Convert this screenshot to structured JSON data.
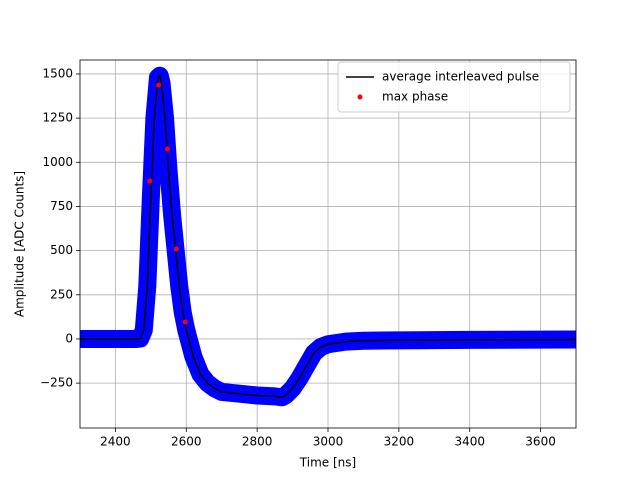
{
  "chart_data": {
    "type": "line",
    "xlabel": "Time [ns]",
    "ylabel": "Amplitude [ADC Counts]",
    "xlim": [
      2300,
      3700
    ],
    "xticks": [
      2400,
      2600,
      2800,
      3000,
      3200,
      3400,
      3600
    ],
    "ylim": [
      -504,
      1579
    ],
    "yticks": [
      {
        "value": -250,
        "label": "−250"
      },
      0,
      250,
      500,
      750,
      1000,
      1250,
      1500
    ],
    "grid": true,
    "legend": "upper right",
    "series": [
      {
        "kind": "band",
        "color": "#0000ff",
        "x": [
          2300,
          2460,
          2470,
          2480,
          2490,
          2500,
          2510,
          2520,
          2525,
          2530,
          2540,
          2550,
          2560,
          2570,
          2580,
          2590,
          2600,
          2620,
          2640,
          2660,
          2680,
          2700,
          2750,
          2800,
          2850,
          2870,
          2880,
          2900,
          2920,
          2940,
          2960,
          2980,
          3000,
          3050,
          3100,
          3200,
          3400,
          3700
        ],
        "values": [
          0,
          0,
          2,
          50,
          300,
          800,
          1250,
          1480,
          1490,
          1450,
          1250,
          950,
          700,
          500,
          300,
          150,
          50,
          -100,
          -200,
          -250,
          -280,
          -300,
          -310,
          -320,
          -325,
          -330,
          -320,
          -280,
          -220,
          -150,
          -80,
          -45,
          -30,
          -15,
          -10,
          -8,
          -5,
          -3
        ]
      },
      {
        "name": "average interleaved pulse",
        "kind": "line",
        "color": "#000000",
        "x": [
          2300,
          2460,
          2470,
          2480,
          2490,
          2500,
          2510,
          2520,
          2525,
          2530,
          2540,
          2550,
          2560,
          2570,
          2580,
          2590,
          2600,
          2620,
          2640,
          2660,
          2680,
          2700,
          2750,
          2800,
          2850,
          2870,
          2880,
          2900,
          2920,
          2940,
          2960,
          2980,
          3000,
          3050,
          3100,
          3200,
          3400,
          3700
        ],
        "values": [
          0,
          0,
          2,
          50,
          300,
          800,
          1250,
          1480,
          1490,
          1450,
          1250,
          950,
          700,
          500,
          300,
          150,
          50,
          -100,
          -200,
          -250,
          -280,
          -300,
          -310,
          -320,
          -325,
          -330,
          -320,
          -280,
          -220,
          -150,
          -80,
          -45,
          -30,
          -15,
          -10,
          -8,
          -5,
          -3
        ]
      },
      {
        "name": "max phase",
        "kind": "scatter",
        "color": "#ff0000",
        "x": [
          2497,
          2522,
          2547,
          2572,
          2597
        ],
        "values": [
          894,
          1437,
          1075,
          509,
          96
        ]
      }
    ]
  }
}
